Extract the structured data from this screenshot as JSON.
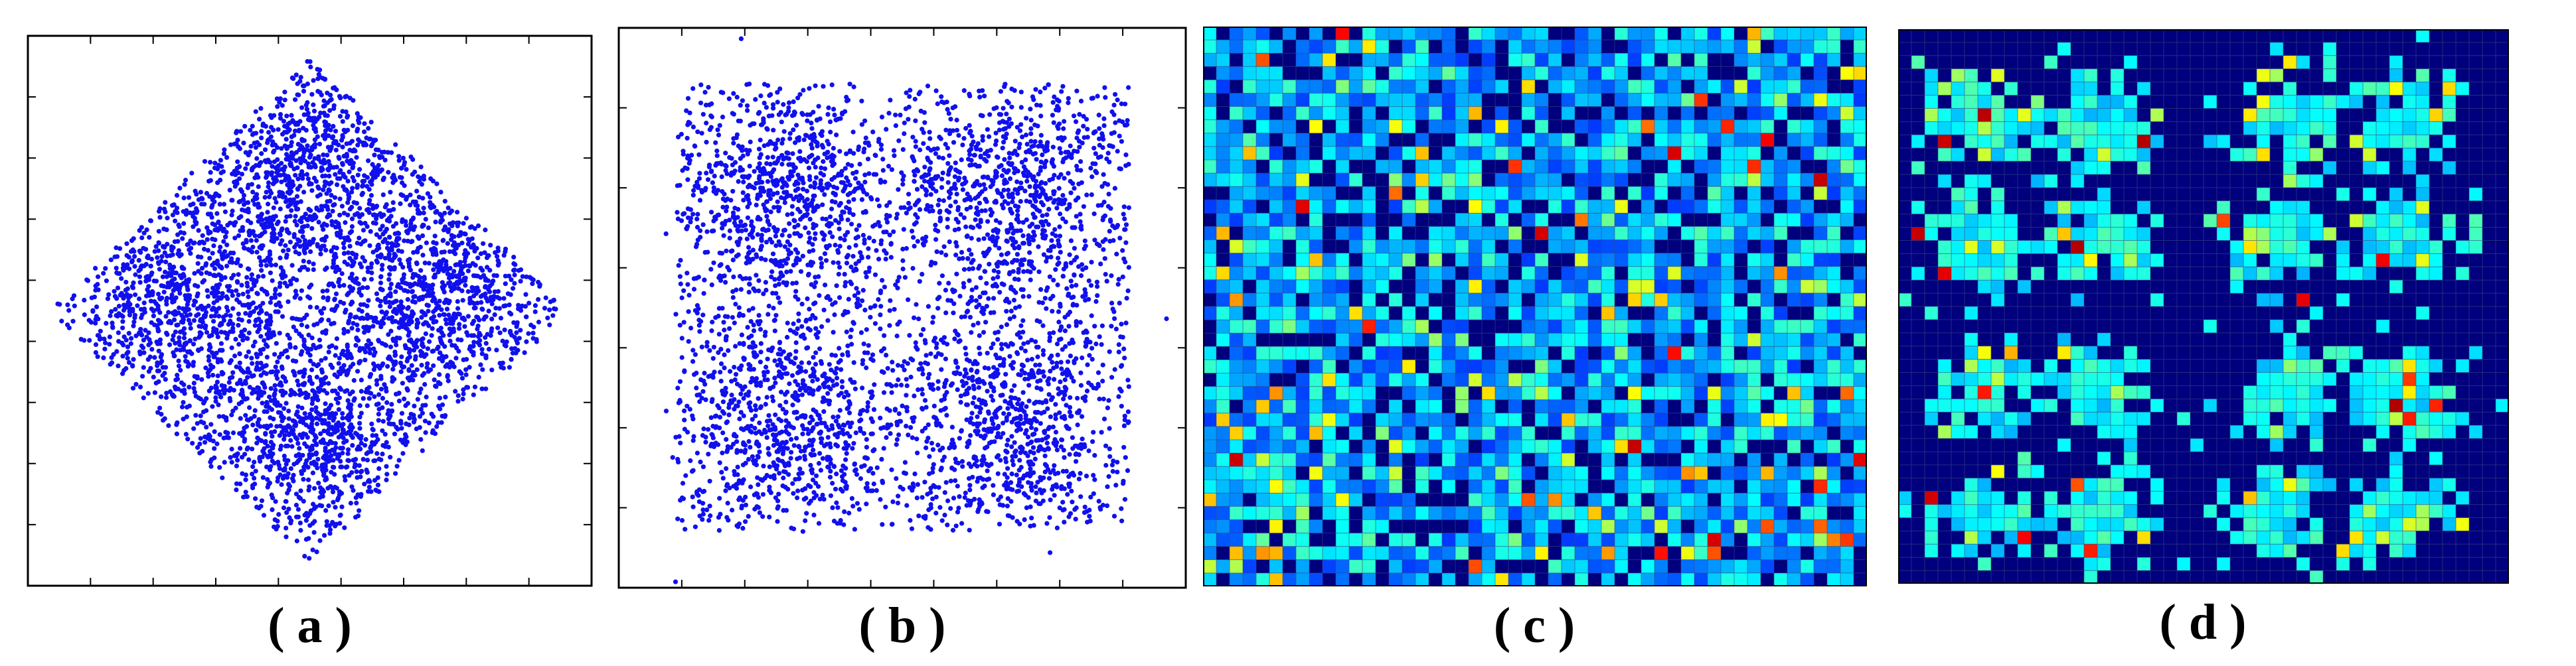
{
  "captions": {
    "a": "( a )",
    "b": "( b )",
    "c": "( c )",
    "d": "( d )"
  },
  "colors": {
    "scatter_point": "#1010ee",
    "heatmap_background": "#00007f",
    "heatmap_grid": "#3a4a7a",
    "axis": "#000000"
  },
  "chart_data": [
    {
      "id": "a",
      "type": "scatter",
      "title": "",
      "xlabel": "",
      "ylabel": "",
      "tick_labels_shown": false,
      "x_ticks": 9,
      "y_ticks": 9,
      "grid": false,
      "legend": "none",
      "series_color": "#1010ee",
      "distribution": "diamond",
      "point_count": 4000,
      "xlim": [
        -1,
        1
      ],
      "ylim": [
        -1,
        1
      ],
      "diamond_half_width": 0.92,
      "cluster_centers": [
        [
          -0.45,
          0.05
        ],
        [
          0.45,
          0.05
        ],
        [
          0.0,
          0.5
        ],
        [
          0.0,
          -0.45
        ]
      ]
    },
    {
      "id": "b",
      "type": "scatter",
      "title": "",
      "xlabel": "",
      "ylabel": "",
      "tick_labels_shown": false,
      "x_ticks": 9,
      "y_ticks": 7,
      "grid": false,
      "legend": "none",
      "series_color": "#1010ee",
      "distribution": "square",
      "point_count": 4000,
      "xlim": [
        -1,
        1
      ],
      "ylim": [
        -1,
        1
      ],
      "square_half_width": 0.8,
      "cluster_centers": [
        [
          -0.4,
          0.4
        ],
        [
          0.4,
          0.4
        ],
        [
          -0.4,
          -0.4
        ],
        [
          0.4,
          -0.4
        ]
      ]
    },
    {
      "id": "c",
      "type": "heatmap",
      "title": "",
      "xlabel": "",
      "ylabel": "",
      "legend": "none",
      "colormap": "jet",
      "grid": true,
      "rows": 42,
      "cols": 50,
      "occupancy": "dense-uniform",
      "background": "#00007f"
    },
    {
      "id": "d",
      "type": "heatmap",
      "title": "",
      "xlabel": "",
      "ylabel": "",
      "legend": "none",
      "colormap": "jet",
      "grid": true,
      "rows": 42,
      "cols": 46,
      "occupancy": "clustered-2x2-of-2x2",
      "background": "#00007f",
      "cluster_centers": [
        [
          0.14,
          0.17
        ],
        [
          0.33,
          0.17
        ],
        [
          0.63,
          0.17
        ],
        [
          0.82,
          0.17
        ],
        [
          0.14,
          0.38
        ],
        [
          0.33,
          0.38
        ],
        [
          0.63,
          0.38
        ],
        [
          0.82,
          0.38
        ],
        [
          0.14,
          0.66
        ],
        [
          0.33,
          0.66
        ],
        [
          0.63,
          0.66
        ],
        [
          0.82,
          0.66
        ],
        [
          0.14,
          0.87
        ],
        [
          0.33,
          0.87
        ],
        [
          0.63,
          0.87
        ],
        [
          0.82,
          0.87
        ]
      ]
    }
  ]
}
